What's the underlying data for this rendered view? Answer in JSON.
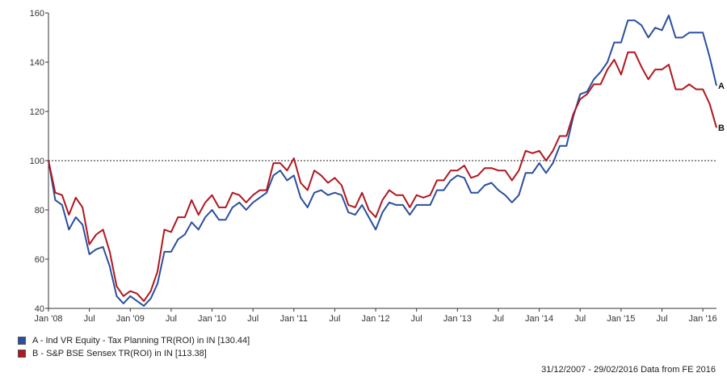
{
  "chart_data": {
    "type": "line",
    "x_start": "Jan 2008",
    "x_step": "month",
    "xtick_labels": [
      "Jan '08",
      "Jul",
      "Jan '09",
      "Jul",
      "Jan '10",
      "Jul",
      "Jan '11",
      "Jul",
      "Jan '12",
      "Jul",
      "Jan '13",
      "Jul",
      "Jan '14",
      "Jul",
      "Jan '15",
      "Jul",
      "Jan '16"
    ],
    "yticks": [
      40,
      60,
      80,
      100,
      120,
      140,
      160
    ],
    "ylim": [
      40,
      160
    ],
    "reference_line": 100,
    "grid": false,
    "legend_position": "bottom-left",
    "series": [
      {
        "name": "A - Ind VR Equity - Tax Planning TR(ROI) in IN [130.44]",
        "end_label": "A",
        "color": "#2a4fa0",
        "values": [
          100,
          84,
          82,
          72,
          77,
          74,
          62,
          64,
          65,
          57,
          45,
          42,
          45,
          43,
          41,
          44,
          50,
          63,
          63,
          68,
          70,
          75,
          72,
          77,
          80,
          76,
          76,
          81,
          83,
          80,
          83,
          85,
          87,
          94,
          96,
          92,
          94,
          85,
          81,
          87,
          88,
          86,
          87,
          86,
          79,
          78,
          82,
          77,
          72,
          79,
          83,
          82,
          82,
          78,
          82,
          82,
          82,
          88,
          88,
          92,
          94,
          93,
          87,
          87,
          90,
          91,
          88,
          86,
          83,
          86,
          95,
          95,
          99,
          95,
          99,
          106,
          106,
          118,
          127,
          128,
          133,
          136,
          140,
          148,
          148,
          157,
          157,
          155,
          150,
          154,
          153,
          159,
          150,
          150,
          152,
          152,
          152,
          142,
          130.44
        ]
      },
      {
        "name": "B - S&P BSE Sensex TR(ROI) in IN [113.38]",
        "end_label": "B",
        "color": "#b0171f",
        "values": [
          100,
          87,
          86,
          78,
          85,
          81,
          66,
          70,
          72,
          63,
          49,
          45,
          47,
          46,
          43,
          47,
          55,
          72,
          71,
          77,
          77,
          84,
          78,
          83,
          86,
          81,
          81,
          87,
          86,
          83,
          86,
          88,
          88,
          99,
          99,
          96,
          101,
          91,
          88,
          96,
          94,
          91,
          93,
          90,
          82,
          81,
          87,
          80,
          77,
          84,
          88,
          86,
          86,
          81,
          86,
          85,
          86,
          92,
          92,
          96,
          96,
          98,
          93,
          94,
          97,
          97,
          96,
          96,
          92,
          96,
          104,
          103,
          104,
          100,
          104,
          110,
          110,
          119,
          125,
          127,
          131,
          131,
          137,
          141,
          135,
          144,
          144,
          138,
          133,
          137,
          137,
          139,
          129,
          129,
          131,
          129,
          129,
          123,
          113.38
        ]
      }
    ]
  },
  "legend": {
    "items": [
      {
        "label": "A - Ind VR Equity - Tax Planning TR(ROI) in IN [130.44]",
        "color": "#2a4fa0"
      },
      {
        "label": "B - S&P BSE Sensex TR(ROI) in IN [113.38]",
        "color": "#b0171f"
      }
    ]
  },
  "footer": {
    "text": "31/12/2007 - 29/02/2016 Data from FE 2016"
  }
}
